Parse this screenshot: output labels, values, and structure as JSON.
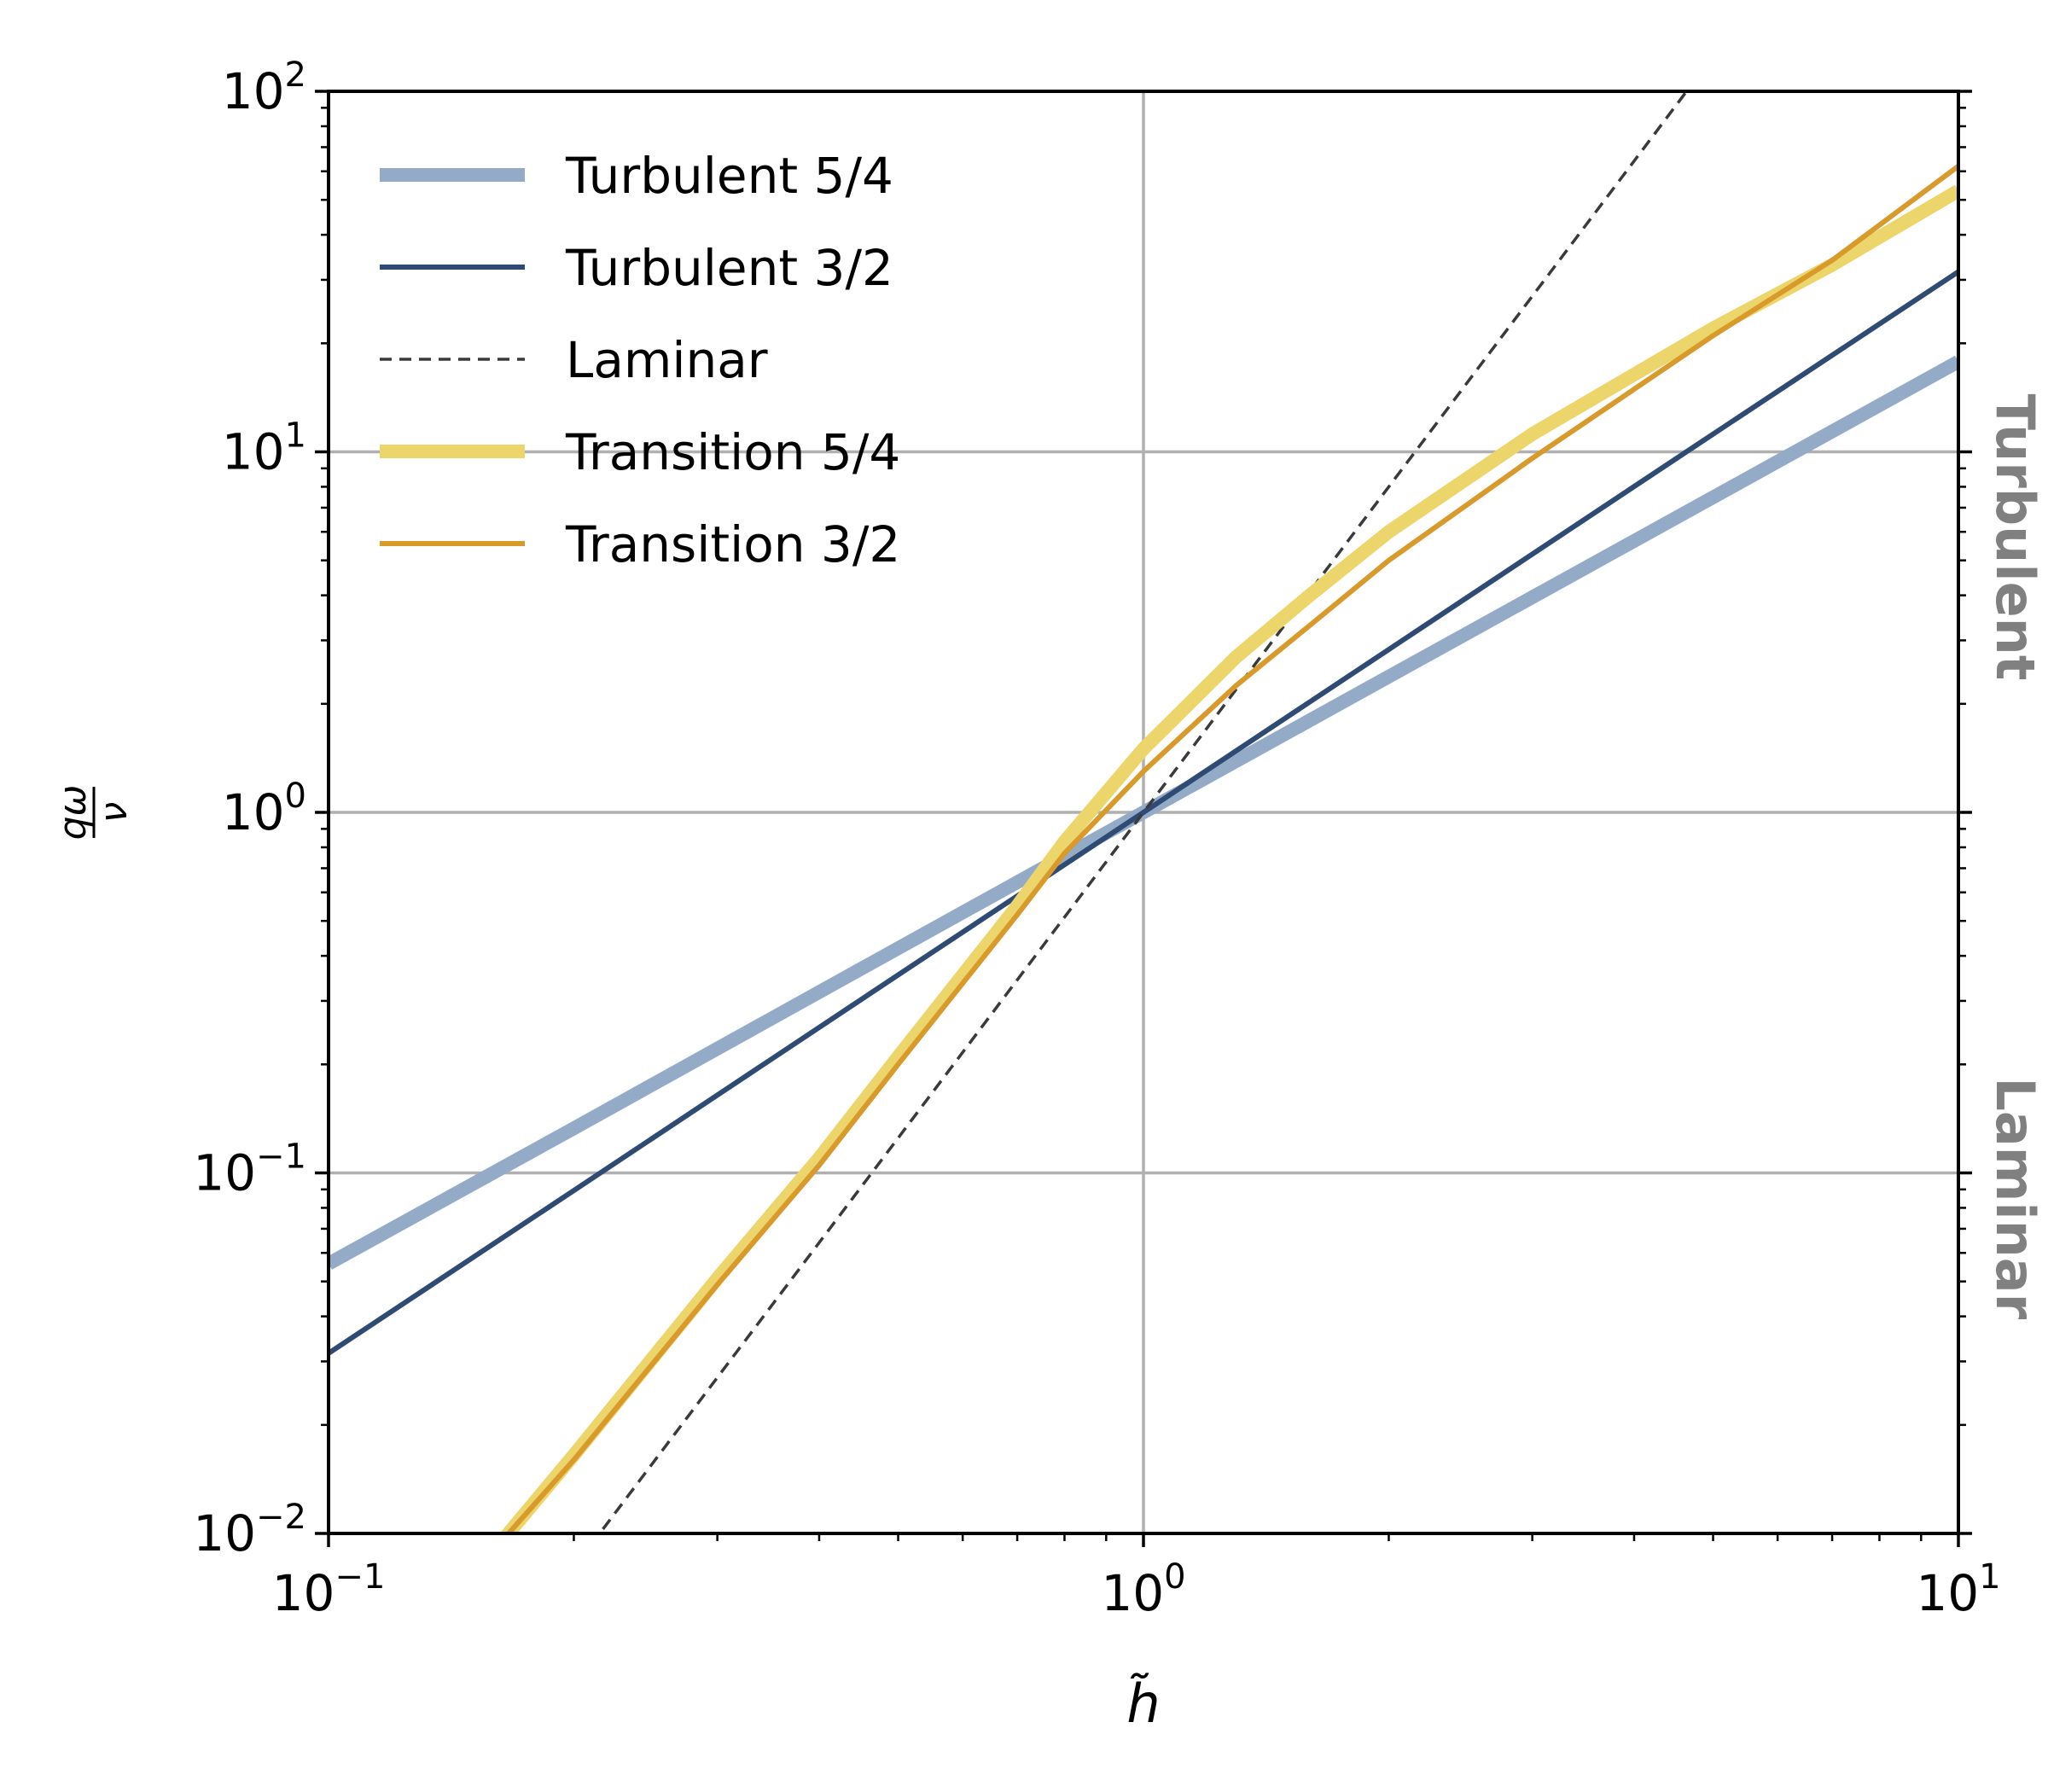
{
  "chart_data": {
    "type": "line",
    "xscale": "log",
    "yscale": "log",
    "xlim": [
      0.1,
      10
    ],
    "ylim": [
      0.01,
      100
    ],
    "grid": true,
    "legend": "top-left",
    "xlabel": "h̃",
    "ylabel": "qω/ν",
    "x_ticks": [
      {
        "value": 0.1,
        "base": "10",
        "exp": "−1"
      },
      {
        "value": 1,
        "base": "10",
        "exp": "0"
      },
      {
        "value": 10,
        "base": "10",
        "exp": "1"
      }
    ],
    "y_ticks": [
      {
        "value": 0.01,
        "base": "10",
        "exp": "−2"
      },
      {
        "value": 0.1,
        "base": "10",
        "exp": "−1"
      },
      {
        "value": 1,
        "base": "10",
        "exp": "0"
      },
      {
        "value": 10,
        "base": "10",
        "exp": "1"
      },
      {
        "value": 100,
        "base": "10",
        "exp": "2"
      }
    ],
    "region_labels": [
      {
        "text": "Turbulent",
        "y_center": 5.8
      },
      {
        "text": "Laminar",
        "y_center": 0.085
      }
    ],
    "series": [
      {
        "name": "Turbulent 5/4",
        "color": "#93abc7",
        "style": "thick",
        "x": [
          0.1,
          0.2,
          0.5,
          1,
          2,
          5,
          10
        ],
        "y": [
          0.056,
          0.133,
          0.42,
          1.0,
          2.38,
          7.48,
          17.8
        ]
      },
      {
        "name": "Turbulent 3/2",
        "color": "#2f4b74",
        "style": "solid",
        "x": [
          0.1,
          0.2,
          0.5,
          1,
          2,
          5,
          10
        ],
        "y": [
          0.0316,
          0.0894,
          0.354,
          1.0,
          2.83,
          11.2,
          31.6
        ]
      },
      {
        "name": "Laminar",
        "color": "#3a3a3a",
        "style": "dashed",
        "x": [
          0.21,
          0.5,
          1,
          2,
          4.64
        ],
        "y": [
          0.0093,
          0.125,
          1.0,
          8.0,
          100
        ]
      },
      {
        "name": "Transition 5/4",
        "color": "#ecd56b",
        "style": "thick",
        "x": [
          0.165,
          0.2,
          0.3,
          0.4,
          0.5,
          0.7,
          0.8,
          1.0,
          1.3,
          1.6,
          2.0,
          3.0,
          5.0,
          7.0,
          10.0
        ],
        "y": [
          0.0098,
          0.0165,
          0.051,
          0.11,
          0.21,
          0.55,
          0.83,
          1.5,
          2.7,
          4.0,
          6.0,
          11.2,
          22,
          33,
          53
        ]
      },
      {
        "name": "Transition 3/2",
        "color": "#d89a2b",
        "style": "solid",
        "x": [
          0.165,
          0.2,
          0.3,
          0.4,
          0.5,
          0.7,
          0.8,
          1.0,
          1.3,
          1.6,
          2.0,
          3.0,
          5.0,
          7.0,
          10.0
        ],
        "y": [
          0.0098,
          0.016,
          0.049,
          0.105,
          0.2,
          0.52,
          0.77,
          1.3,
          2.25,
          3.3,
          5.0,
          9.6,
          21,
          34,
          62
        ]
      }
    ]
  }
}
